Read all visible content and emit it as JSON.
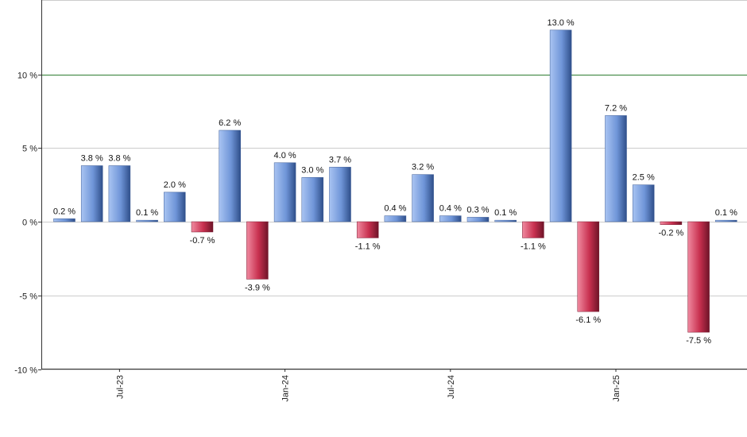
{
  "chart_data": {
    "type": "bar",
    "ylim": [
      -10,
      15
    ],
    "yticks": [
      {
        "value": -10,
        "label": "-10 %"
      },
      {
        "value": -5,
        "label": "-5 %"
      },
      {
        "value": 0,
        "label": "0 %"
      },
      {
        "value": 5,
        "label": "5 %"
      },
      {
        "value": 10,
        "label": "10 %"
      }
    ],
    "grid": true,
    "reference_line": 10,
    "x_tick_labels": [
      {
        "index": 2,
        "label": "Jul-23"
      },
      {
        "index": 8,
        "label": "Jan-24"
      },
      {
        "index": 14,
        "label": "Jul-24"
      },
      {
        "index": 20,
        "label": "Jan-25"
      }
    ],
    "values": [
      0.2,
      3.8,
      3.8,
      0.1,
      2.0,
      -0.7,
      6.2,
      -3.9,
      4.0,
      3.0,
      3.7,
      -1.1,
      0.4,
      3.2,
      0.4,
      0.3,
      0.1,
      -1.1,
      13.0,
      -6.1,
      7.2,
      2.5,
      -0.2,
      -7.5,
      0.1
    ],
    "labels": [
      "0.2 %",
      "3.8 %",
      "3.8 %",
      "0.1 %",
      "2.0 %",
      "-0.7 %",
      "6.2 %",
      "-3.9 %",
      "4.0 %",
      "3.0 %",
      "3.7 %",
      "-1.1 %",
      "0.4 %",
      "3.2 %",
      "0.4 %",
      "0.3 %",
      "0.1 %",
      "-1.1 %",
      "13.0 %",
      "-6.1 %",
      "7.2 %",
      "2.5 %",
      "-0.2 %",
      "-7.5 %",
      "0.1 %"
    ],
    "colors": {
      "positive": "#6f95d8",
      "negative": "#c8304f",
      "reference_line": "#2e7d32",
      "grid": "#cccccc",
      "axis": "#333333"
    }
  }
}
